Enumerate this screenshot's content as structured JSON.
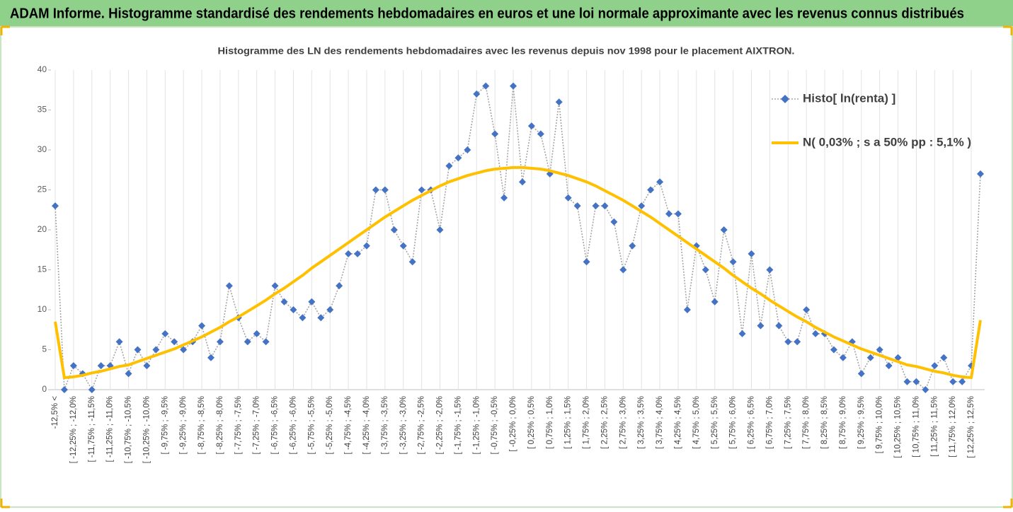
{
  "chart_data": {
    "type": "line",
    "title": "ADAM Informe. Histogramme standardisé des rendements hebdomadaires en euros et une loi normale approximante avec les revenus connus distribués",
    "subtitle": "Histogramme des LN des rendements hebdomadaires avec les revenus depuis nov 1998 pour le placement AIXTRON.",
    "categories": [
      "-12,5% <",
      null,
      "[ -12,25% ; -12,0%",
      null,
      "[ -11,75% ; -11,5%",
      null,
      "[ -11,25% ; -11,0%",
      null,
      "[ -10,75% ; -10,5%",
      null,
      "[ -10,25% ; -10,0%",
      null,
      "[ -9,75% ; -9,5%",
      null,
      "[ -9,25% ; -9,0%",
      null,
      "[ -8,75% ; -8,5%",
      null,
      "[ -8,25% ; -8,0%",
      null,
      "[ -7,75% ; -7,5%",
      null,
      "[ -7,25% ; -7,0%",
      null,
      "[ -6,75% ; -6,5%",
      null,
      "[ -6,25% ; -6,0%",
      null,
      "[ -5,75% ; -5,5%",
      null,
      "[ -5,25% ; -5,0%",
      null,
      "[ -4,75% ; -4,5%",
      null,
      "[ -4,25% ; -4,0%",
      null,
      "[ -3,75% ; -3,5%",
      null,
      "[ -3,25% ; -3,0%",
      null,
      "[ -2,75% ; -2,5%",
      null,
      "[ -2,25% ; -2,0%",
      null,
      "[ -1,75% ; -1,5%",
      null,
      "[ -1,25% ; -1,0%",
      null,
      "[ -0,75% ; -0,5%",
      null,
      "[ -0,25% ; 0,0%",
      null,
      "[ 0,25% ; 0,5%",
      null,
      "[ 0,75% ; 1,0%",
      null,
      "[ 1,25% ; 1,5%",
      null,
      "[ 1,75% ; 2,0%",
      null,
      "[ 2,25% ; 2,5%",
      null,
      "[ 2,75% ; 3,0%",
      null,
      "[ 3,25% ; 3,5%",
      null,
      "[ 3,75% ; 4,0%",
      null,
      "[ 4,25% ; 4,5%",
      null,
      "[ 4,75% ; 5,0%",
      null,
      "[ 5,25% ; 5,5%",
      null,
      "[ 5,75% ; 6,0%",
      null,
      "[ 6,25% ; 6,5%",
      null,
      "[ 6,75% ; 7,0%",
      null,
      "[ 7,25% ; 7,5%",
      null,
      "[ 7,75% ; 8,0%",
      null,
      "[ 8,25% ; 8,5%",
      null,
      "[ 8,75% ; 9,0%",
      null,
      "[ 9,25% ; 9,5%",
      null,
      "[ 9,75% ; 10,0%",
      null,
      "[ 10,25% ; 10,5%",
      null,
      "[ 10,75% ; 11,0%",
      null,
      "[ 11,25% ; 11,5%",
      null,
      "[ 11,75% ; 12,0%",
      null,
      "[ 12,25% ; 12,5%",
      null
    ],
    "series": [
      {
        "name": "Histo[ ln(renta) ]",
        "color": "#4472c4",
        "line_color": "#a6a6a6",
        "line_style": "dotted",
        "marker": "diamond",
        "values": [
          23,
          0,
          3,
          2,
          0,
          3,
          3,
          6,
          2,
          5,
          3,
          5,
          7,
          6,
          5,
          6,
          8,
          4,
          6,
          13,
          9,
          6,
          7,
          6,
          13,
          11,
          10,
          9,
          11,
          9,
          10,
          13,
          17,
          17,
          18,
          25,
          25,
          20,
          18,
          16,
          25,
          25,
          20,
          28,
          29,
          30,
          37,
          38,
          32,
          24,
          38,
          26,
          33,
          32,
          27,
          36,
          24,
          23,
          16,
          23,
          23,
          21,
          15,
          18,
          23,
          25,
          26,
          22,
          22,
          10,
          18,
          15,
          11,
          20,
          16,
          7,
          17,
          8,
          15,
          8,
          6,
          6,
          10,
          7,
          7,
          5,
          4,
          6,
          2,
          4,
          5,
          3,
          4,
          1,
          1,
          0,
          3,
          4,
          1,
          1,
          3,
          27
        ]
      },
      {
        "name": "N( 0,03% ; s a 50% pp : 5,1% )",
        "color": "#ffc000",
        "line_style": "solid",
        "values": [
          8.5,
          1.5,
          1.6,
          1.8,
          2.1,
          2.3,
          2.6,
          2.9,
          3.1,
          3.5,
          3.9,
          4.3,
          4.7,
          5.1,
          5.6,
          6.1,
          6.6,
          7.2,
          7.8,
          8.5,
          9.1,
          9.8,
          10.5,
          11.2,
          12.0,
          12.7,
          13.5,
          14.3,
          15.2,
          16.0,
          16.8,
          17.6,
          18.4,
          19.2,
          20.0,
          20.8,
          21.6,
          22.3,
          23.0,
          23.7,
          24.3,
          24.9,
          25.5,
          26.0,
          26.4,
          26.8,
          27.1,
          27.4,
          27.6,
          27.7,
          27.8,
          27.8,
          27.7,
          27.6,
          27.4,
          27.1,
          26.8,
          26.4,
          26.0,
          25.5,
          24.9,
          24.3,
          23.7,
          23.0,
          22.3,
          21.6,
          20.8,
          20.0,
          19.2,
          18.4,
          17.6,
          16.8,
          16.0,
          15.2,
          14.3,
          13.5,
          12.7,
          12.0,
          11.2,
          10.5,
          9.8,
          9.1,
          8.5,
          7.8,
          7.2,
          6.6,
          6.1,
          5.6,
          5.1,
          4.7,
          4.3,
          3.9,
          3.5,
          3.1,
          2.9,
          2.6,
          2.3,
          2.1,
          1.8,
          1.6,
          1.5,
          8.7
        ]
      }
    ],
    "ylim": [
      0,
      40
    ],
    "yticks": [
      0,
      5,
      10,
      15,
      20,
      25,
      30,
      35,
      40
    ],
    "legend": "upper right"
  }
}
